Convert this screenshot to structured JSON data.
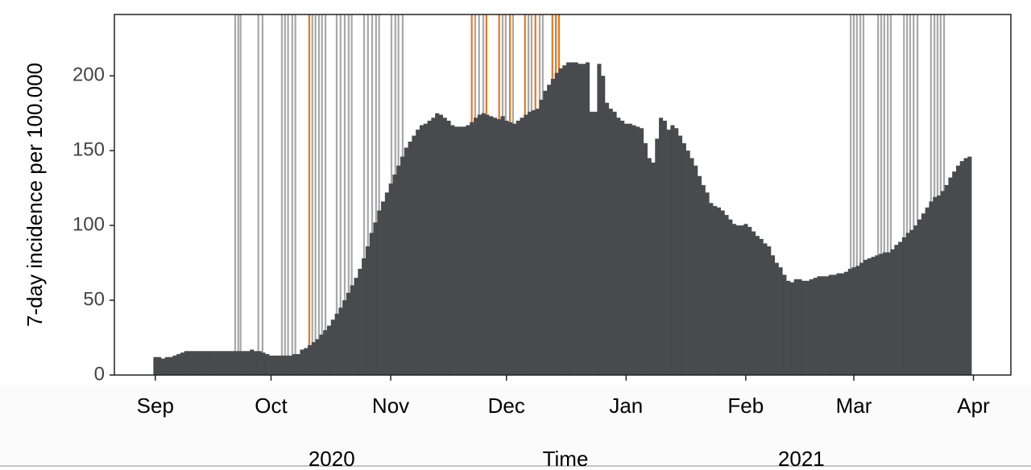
{
  "chart_data": {
    "type": "bar",
    "ylabel": "7-day incidence per 100.000",
    "xlabel": "Time",
    "year_labels": [
      {
        "value": 45.7,
        "label": "2020"
      },
      {
        "value": 167.4,
        "label": "2021"
      }
    ],
    "color": "#484a4d",
    "xlim": [
      -10.6,
      221.7
    ],
    "ylim": [
      0,
      241
    ],
    "yticks": [
      0,
      50,
      100,
      150,
      200
    ],
    "xticks": [
      {
        "value": 0,
        "label": "Sep"
      },
      {
        "value": 30,
        "label": "Oct"
      },
      {
        "value": 61,
        "label": "Nov"
      },
      {
        "value": 91,
        "label": "Dec"
      },
      {
        "value": 122,
        "label": "Jan"
      },
      {
        "value": 153,
        "label": "Feb"
      },
      {
        "value": 181,
        "label": "Mar"
      },
      {
        "value": 212,
        "label": "Apr"
      }
    ],
    "x": [
      0,
      1,
      2,
      3,
      4,
      5,
      6,
      7,
      8,
      9,
      10,
      11,
      12,
      13,
      14,
      15,
      16,
      17,
      18,
      19,
      20,
      21,
      22,
      23,
      24,
      25,
      26,
      27,
      28,
      29,
      30,
      31,
      32,
      33,
      34,
      35,
      36,
      37,
      38,
      39,
      40,
      41,
      42,
      43,
      44,
      45,
      46,
      47,
      48,
      49,
      50,
      51,
      52,
      53,
      54,
      55,
      56,
      57,
      58,
      59,
      60,
      61,
      62,
      63,
      64,
      65,
      66,
      67,
      68,
      69,
      70,
      71,
      72,
      73,
      74,
      75,
      76,
      77,
      78,
      79,
      80,
      81,
      82,
      83,
      84,
      85,
      86,
      87,
      88,
      89,
      90,
      91,
      92,
      93,
      94,
      95,
      96,
      97,
      98,
      99,
      100,
      101,
      102,
      103,
      104,
      105,
      106,
      107,
      108,
      109,
      110,
      111,
      112,
      113,
      114,
      115,
      116,
      117,
      118,
      119,
      120,
      121,
      122,
      123,
      124,
      125,
      126,
      127,
      128,
      129,
      130,
      131,
      132,
      133,
      134,
      135,
      136,
      137,
      138,
      139,
      140,
      141,
      142,
      143,
      144,
      145,
      146,
      147,
      148,
      149,
      150,
      151,
      152,
      153,
      154,
      155,
      156,
      157,
      158,
      159,
      160,
      161,
      162,
      163,
      164,
      165,
      166,
      167,
      168,
      169,
      170,
      171,
      172,
      173,
      174,
      175,
      176,
      177,
      178,
      179,
      180,
      181,
      182,
      183,
      184,
      185,
      186,
      187,
      188,
      189,
      190,
      191,
      192,
      193,
      194,
      195,
      196,
      197,
      198,
      199,
      200,
      201,
      202,
      203,
      204,
      205,
      206,
      207,
      208,
      209,
      210,
      211
    ],
    "values": [
      12,
      12,
      11,
      12,
      12,
      13,
      14,
      15,
      16,
      16,
      16,
      16,
      16,
      16,
      16,
      16,
      16,
      16,
      16,
      16,
      16,
      16,
      16,
      16,
      16,
      17,
      16,
      16,
      15,
      14,
      13,
      13,
      13,
      13,
      13,
      13,
      14,
      14,
      17,
      18,
      20,
      22,
      24,
      27,
      30,
      33,
      37,
      41,
      45,
      50,
      55,
      60,
      65,
      71,
      78,
      86,
      95,
      102,
      110,
      116,
      122,
      128,
      134,
      140,
      146,
      152,
      156,
      160,
      164,
      167,
      168,
      170,
      172,
      175,
      174,
      172,
      170,
      167,
      166,
      166,
      166,
      167,
      169,
      172,
      174,
      175,
      174,
      173,
      172,
      171,
      173,
      170,
      169,
      168,
      170,
      172,
      174,
      176,
      177,
      178,
      184,
      190,
      194,
      198,
      202,
      205,
      207,
      209,
      209,
      209,
      208,
      208,
      209,
      176,
      176,
      208,
      200,
      182,
      178,
      176,
      172,
      170,
      168,
      168,
      167,
      166,
      165,
      155,
      145,
      142,
      158,
      172,
      170,
      164,
      167,
      165,
      160,
      155,
      150,
      145,
      140,
      133,
      127,
      122,
      115,
      113,
      112,
      110,
      107,
      104,
      101,
      100,
      100,
      101,
      99,
      96,
      93,
      91,
      88,
      86,
      80,
      75,
      72,
      67,
      63,
      62,
      64,
      64,
      63,
      63,
      64,
      65,
      66,
      66,
      66,
      67,
      67,
      68,
      68,
      69,
      71,
      72,
      73,
      75,
      77,
      78,
      79,
      80,
      81,
      82,
      82,
      84,
      87,
      89,
      92,
      95,
      97,
      100,
      104,
      108,
      112,
      116,
      119,
      120,
      123,
      127,
      132,
      136,
      140,
      143,
      145,
      146
    ],
    "vlines": [
      {
        "color": "#a8a8a8",
        "x": [
          20.7,
          21.5,
          22.1,
          26.7,
          27.8,
          32.8,
          33.6,
          34.4,
          35.5,
          36.3,
          40.7,
          41.5,
          42.4,
          43.2,
          44.1,
          47.0,
          48.0,
          49.1,
          50.1,
          50.9,
          54.1,
          55.1,
          56.2,
          57.2,
          58.0,
          61.2,
          62.2,
          63.0,
          64.1,
          82.9,
          83.9,
          85.0,
          90.0,
          90.8,
          92.7,
          96.7,
          97.5,
          99.6,
          100.4,
          180.2,
          181.0,
          181.8,
          182.7,
          183.5,
          187.3,
          188.1,
          188.9,
          189.8,
          190.6,
          194.0,
          194.8,
          195.6,
          196.5,
          197.5,
          201.0,
          201.9,
          202.7,
          203.5,
          204.4
        ]
      },
      {
        "color": "#e8771e",
        "x": [
          39.9,
          82.0,
          85.8,
          89.1,
          91.9,
          95.8,
          98.5,
          102.9,
          103.8,
          104.6
        ]
      }
    ]
  }
}
